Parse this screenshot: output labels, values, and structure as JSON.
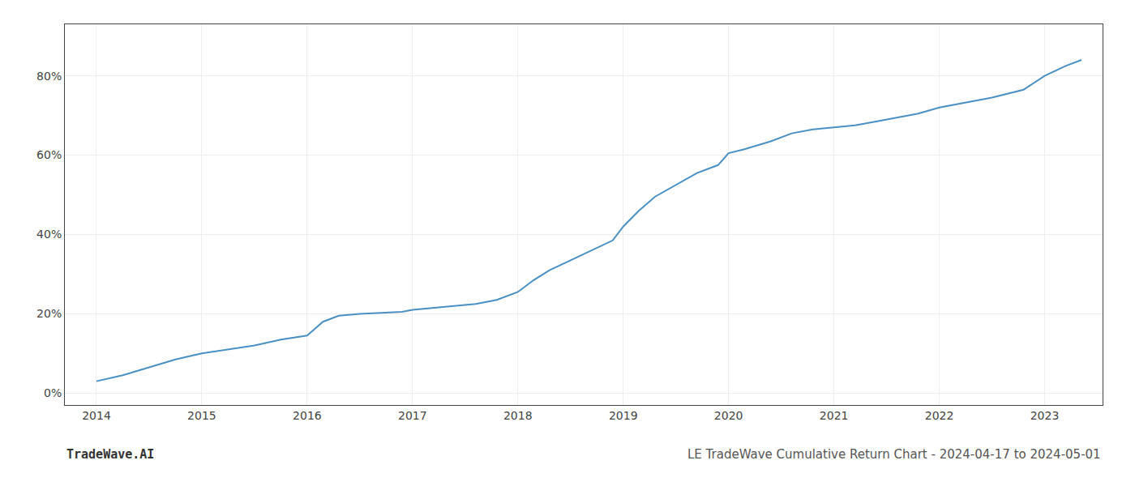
{
  "chart_data": {
    "type": "line",
    "title": "LE TradeWave Cumulative Return Chart - 2024-04-17 to 2024-05-01",
    "annotations": [
      "TradeWave.AI"
    ],
    "x": [
      2014.0,
      2014.25,
      2014.5,
      2014.75,
      2015.0,
      2015.25,
      2015.5,
      2015.75,
      2016.0,
      2016.15,
      2016.3,
      2016.5,
      2016.7,
      2016.9,
      2017.0,
      2017.2,
      2017.4,
      2017.6,
      2017.8,
      2018.0,
      2018.15,
      2018.3,
      2018.5,
      2018.7,
      2018.9,
      2019.0,
      2019.15,
      2019.3,
      2019.5,
      2019.7,
      2019.9,
      2020.0,
      2020.15,
      2020.4,
      2020.6,
      2020.8,
      2021.0,
      2021.2,
      2021.4,
      2021.6,
      2021.8,
      2022.0,
      2022.2,
      2022.5,
      2022.8,
      2023.0,
      2023.2,
      2023.35
    ],
    "values": [
      3.0,
      4.5,
      6.5,
      8.5,
      10.0,
      11.0,
      12.0,
      13.5,
      14.5,
      18.0,
      19.5,
      20.0,
      20.3,
      20.5,
      21.0,
      21.5,
      22.0,
      22.5,
      23.5,
      25.5,
      28.5,
      31.0,
      33.5,
      36.0,
      38.5,
      42.0,
      46.0,
      49.5,
      52.5,
      55.5,
      57.5,
      60.5,
      61.5,
      63.5,
      65.5,
      66.5,
      67.0,
      67.5,
      68.5,
      69.5,
      70.5,
      72.0,
      73.0,
      74.5,
      76.5,
      80.0,
      82.5,
      84.0
    ],
    "color": "#4a90c4",
    "xlim": [
      2013.7,
      2023.55
    ],
    "ylim": [
      -3,
      93
    ],
    "xticks": [
      2014,
      2015,
      2016,
      2017,
      2018,
      2019,
      2020,
      2021,
      2022,
      2023
    ],
    "yticks": [
      {
        "value": 0,
        "label": "0%"
      },
      {
        "value": 20,
        "label": "20%"
      },
      {
        "value": 40,
        "label": "40%"
      },
      {
        "value": 60,
        "label": "60%"
      },
      {
        "value": 80,
        "label": "80%"
      }
    ],
    "grid": true
  }
}
